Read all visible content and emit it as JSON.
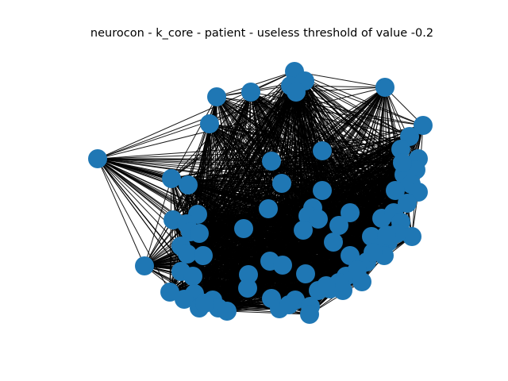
{
  "figure": {
    "title": "neurocon - k_core - patient - useless threshold of value -0.2"
  },
  "graph": {
    "node_color": "#1f77b4",
    "edge_color": "#000000",
    "node_count": 86,
    "edges": "dense (near-complete k-core)"
  }
}
